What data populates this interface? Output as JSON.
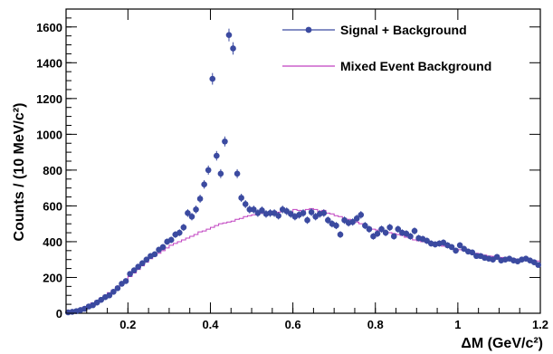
{
  "chart_data": {
    "type": "scatter",
    "xlabel": "ΔM (GeV/c²)",
    "ylabel": "Counts / (10 MeV/c²)",
    "xlim": [
      0.05,
      1.2
    ],
    "ylim": [
      0,
      1700
    ],
    "x_ticks": [
      "0.2",
      "0.4",
      "0.6",
      "0.8",
      "1",
      "1.2"
    ],
    "y_ticks": [
      "0",
      "200",
      "400",
      "600",
      "800",
      "1000",
      "1200",
      "1400",
      "1600"
    ],
    "legend": [
      {
        "label": "Signal + Background",
        "marker": "point",
        "color": "#3b4aa0"
      },
      {
        "label": "Mixed Event Background",
        "marker": "line",
        "color": "#c040c0"
      }
    ],
    "legend_position": "top-right",
    "series": [
      {
        "name": "Signal + Background",
        "color": "#3b4aa0",
        "points": [
          [
            0.055,
            5
          ],
          [
            0.065,
            8
          ],
          [
            0.075,
            12
          ],
          [
            0.085,
            18
          ],
          [
            0.095,
            25
          ],
          [
            0.105,
            38
          ],
          [
            0.115,
            45
          ],
          [
            0.125,
            60
          ],
          [
            0.135,
            75
          ],
          [
            0.145,
            90
          ],
          [
            0.155,
            100
          ],
          [
            0.165,
            120
          ],
          [
            0.175,
            140
          ],
          [
            0.185,
            165
          ],
          [
            0.195,
            180
          ],
          [
            0.205,
            220
          ],
          [
            0.215,
            240
          ],
          [
            0.225,
            260
          ],
          [
            0.235,
            280
          ],
          [
            0.245,
            300
          ],
          [
            0.255,
            320
          ],
          [
            0.265,
            330
          ],
          [
            0.275,
            355
          ],
          [
            0.285,
            370
          ],
          [
            0.295,
            400
          ],
          [
            0.305,
            410
          ],
          [
            0.315,
            440
          ],
          [
            0.325,
            450
          ],
          [
            0.335,
            480
          ],
          [
            0.345,
            560
          ],
          [
            0.355,
            540
          ],
          [
            0.365,
            580
          ],
          [
            0.375,
            640
          ],
          [
            0.385,
            720
          ],
          [
            0.395,
            800
          ],
          [
            0.405,
            1310
          ],
          [
            0.415,
            880
          ],
          [
            0.425,
            780
          ],
          [
            0.435,
            960
          ],
          [
            0.445,
            1555
          ],
          [
            0.455,
            1480
          ],
          [
            0.465,
            780
          ],
          [
            0.475,
            645
          ],
          [
            0.485,
            610
          ],
          [
            0.495,
            580
          ],
          [
            0.505,
            580
          ],
          [
            0.515,
            560
          ],
          [
            0.525,
            575
          ],
          [
            0.535,
            555
          ],
          [
            0.545,
            560
          ],
          [
            0.555,
            560
          ],
          [
            0.565,
            545
          ],
          [
            0.575,
            580
          ],
          [
            0.585,
            570
          ],
          [
            0.595,
            555
          ],
          [
            0.605,
            540
          ],
          [
            0.615,
            550
          ],
          [
            0.625,
            560
          ],
          [
            0.635,
            520
          ],
          [
            0.645,
            565
          ],
          [
            0.655,
            540
          ],
          [
            0.665,
            555
          ],
          [
            0.675,
            560
          ],
          [
            0.685,
            520
          ],
          [
            0.695,
            500
          ],
          [
            0.705,
            490
          ],
          [
            0.715,
            440
          ],
          [
            0.725,
            520
          ],
          [
            0.735,
            505
          ],
          [
            0.745,
            510
          ],
          [
            0.755,
            530
          ],
          [
            0.765,
            550
          ],
          [
            0.775,
            490
          ],
          [
            0.785,
            470
          ],
          [
            0.795,
            430
          ],
          [
            0.805,
            445
          ],
          [
            0.815,
            470
          ],
          [
            0.825,
            450
          ],
          [
            0.835,
            480
          ],
          [
            0.845,
            430
          ],
          [
            0.855,
            470
          ],
          [
            0.865,
            450
          ],
          [
            0.875,
            445
          ],
          [
            0.885,
            430
          ],
          [
            0.895,
            460
          ],
          [
            0.905,
            420
          ],
          [
            0.915,
            415
          ],
          [
            0.925,
            405
          ],
          [
            0.935,
            390
          ],
          [
            0.945,
            385
          ],
          [
            0.955,
            390
          ],
          [
            0.965,
            395
          ],
          [
            0.975,
            380
          ],
          [
            0.985,
            370
          ],
          [
            0.995,
            350
          ],
          [
            1.005,
            380
          ],
          [
            1.015,
            360
          ],
          [
            1.025,
            345
          ],
          [
            1.035,
            340
          ],
          [
            1.045,
            320
          ],
          [
            1.055,
            320
          ],
          [
            1.065,
            310
          ],
          [
            1.075,
            305
          ],
          [
            1.085,
            300
          ],
          [
            1.095,
            315
          ],
          [
            1.105,
            295
          ],
          [
            1.115,
            300
          ],
          [
            1.125,
            305
          ],
          [
            1.135,
            295
          ],
          [
            1.145,
            290
          ],
          [
            1.155,
            300
          ],
          [
            1.165,
            305
          ],
          [
            1.175,
            295
          ],
          [
            1.185,
            285
          ],
          [
            1.195,
            270
          ]
        ]
      },
      {
        "name": "Mixed Event Background",
        "color": "#c040c0",
        "step": true,
        "points": [
          [
            0.05,
            8
          ],
          [
            0.06,
            12
          ],
          [
            0.07,
            18
          ],
          [
            0.08,
            25
          ],
          [
            0.09,
            35
          ],
          [
            0.1,
            45
          ],
          [
            0.11,
            58
          ],
          [
            0.12,
            70
          ],
          [
            0.13,
            85
          ],
          [
            0.14,
            100
          ],
          [
            0.15,
            115
          ],
          [
            0.16,
            130
          ],
          [
            0.17,
            150
          ],
          [
            0.18,
            165
          ],
          [
            0.19,
            185
          ],
          [
            0.2,
            205
          ],
          [
            0.21,
            225
          ],
          [
            0.22,
            245
          ],
          [
            0.23,
            265
          ],
          [
            0.24,
            285
          ],
          [
            0.25,
            305
          ],
          [
            0.26,
            320
          ],
          [
            0.27,
            335
          ],
          [
            0.28,
            350
          ],
          [
            0.29,
            365
          ],
          [
            0.3,
            380
          ],
          [
            0.31,
            390
          ],
          [
            0.32,
            400
          ],
          [
            0.33,
            410
          ],
          [
            0.34,
            420
          ],
          [
            0.35,
            430
          ],
          [
            0.36,
            440
          ],
          [
            0.37,
            455
          ],
          [
            0.38,
            460
          ],
          [
            0.39,
            470
          ],
          [
            0.4,
            480
          ],
          [
            0.41,
            490
          ],
          [
            0.42,
            500
          ],
          [
            0.43,
            505
          ],
          [
            0.44,
            510
          ],
          [
            0.45,
            515
          ],
          [
            0.46,
            525
          ],
          [
            0.47,
            530
          ],
          [
            0.48,
            540
          ],
          [
            0.49,
            545
          ],
          [
            0.5,
            550
          ],
          [
            0.51,
            555
          ],
          [
            0.52,
            560
          ],
          [
            0.53,
            565
          ],
          [
            0.54,
            560
          ],
          [
            0.55,
            570
          ],
          [
            0.56,
            565
          ],
          [
            0.57,
            575
          ],
          [
            0.58,
            570
          ],
          [
            0.59,
            565
          ],
          [
            0.6,
            580
          ],
          [
            0.61,
            575
          ],
          [
            0.62,
            570
          ],
          [
            0.63,
            580
          ],
          [
            0.64,
            585
          ],
          [
            0.65,
            580
          ],
          [
            0.66,
            570
          ],
          [
            0.67,
            575
          ],
          [
            0.68,
            560
          ],
          [
            0.69,
            555
          ],
          [
            0.7,
            545
          ],
          [
            0.71,
            540
          ],
          [
            0.72,
            530
          ],
          [
            0.73,
            525
          ],
          [
            0.74,
            520
          ],
          [
            0.75,
            510
          ],
          [
            0.76,
            500
          ],
          [
            0.77,
            490
          ],
          [
            0.78,
            480
          ],
          [
            0.79,
            470
          ],
          [
            0.8,
            465
          ],
          [
            0.81,
            460
          ],
          [
            0.82,
            455
          ],
          [
            0.83,
            450
          ],
          [
            0.84,
            445
          ],
          [
            0.85,
            440
          ],
          [
            0.86,
            435
          ],
          [
            0.87,
            425
          ],
          [
            0.88,
            420
          ],
          [
            0.89,
            410
          ],
          [
            0.9,
            405
          ],
          [
            0.91,
            400
          ],
          [
            0.92,
            395
          ],
          [
            0.93,
            390
          ],
          [
            0.94,
            385
          ],
          [
            0.95,
            380
          ],
          [
            0.96,
            375
          ],
          [
            0.97,
            370
          ],
          [
            0.98,
            365
          ],
          [
            0.99,
            360
          ],
          [
            1.0,
            355
          ],
          [
            1.01,
            350
          ],
          [
            1.02,
            345
          ],
          [
            1.03,
            340
          ],
          [
            1.04,
            335
          ],
          [
            1.05,
            330
          ],
          [
            1.06,
            325
          ],
          [
            1.07,
            320
          ],
          [
            1.08,
            318
          ],
          [
            1.09,
            315
          ],
          [
            1.1,
            312
          ],
          [
            1.11,
            310
          ],
          [
            1.12,
            308
          ],
          [
            1.13,
            305
          ],
          [
            1.14,
            302
          ],
          [
            1.15,
            300
          ],
          [
            1.16,
            298
          ],
          [
            1.17,
            296
          ],
          [
            1.18,
            294
          ],
          [
            1.19,
            292
          ]
        ]
      }
    ]
  }
}
